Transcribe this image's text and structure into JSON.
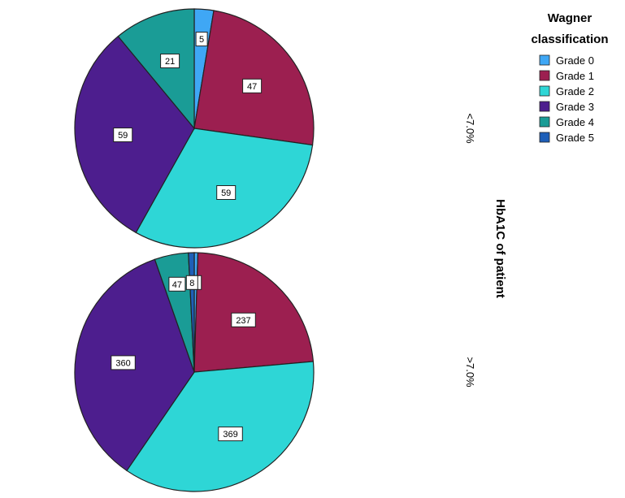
{
  "chart_data": {
    "type": "pie",
    "title": "",
    "panel_axis_title": "HbA1C of patient",
    "legend": {
      "title_line1": "Wagner",
      "title_line2": "classification",
      "placement": "top-right"
    },
    "categories": [
      "Grade 0",
      "Grade 1",
      "Grade 2",
      "Grade 3",
      "Grade 4",
      "Grade 5"
    ],
    "colors": [
      "#3FA7F5",
      "#9C1F50",
      "#2ED6D6",
      "#4D1E8E",
      "#1A9C96",
      "#1E5FB8"
    ],
    "panels": [
      {
        "label": "<7.0%",
        "values": [
          5,
          47,
          59,
          59,
          21,
          0
        ]
      },
      {
        "label": ">7.0%",
        "values": [
          5,
          237,
          369,
          360,
          47,
          8
        ]
      }
    ]
  }
}
